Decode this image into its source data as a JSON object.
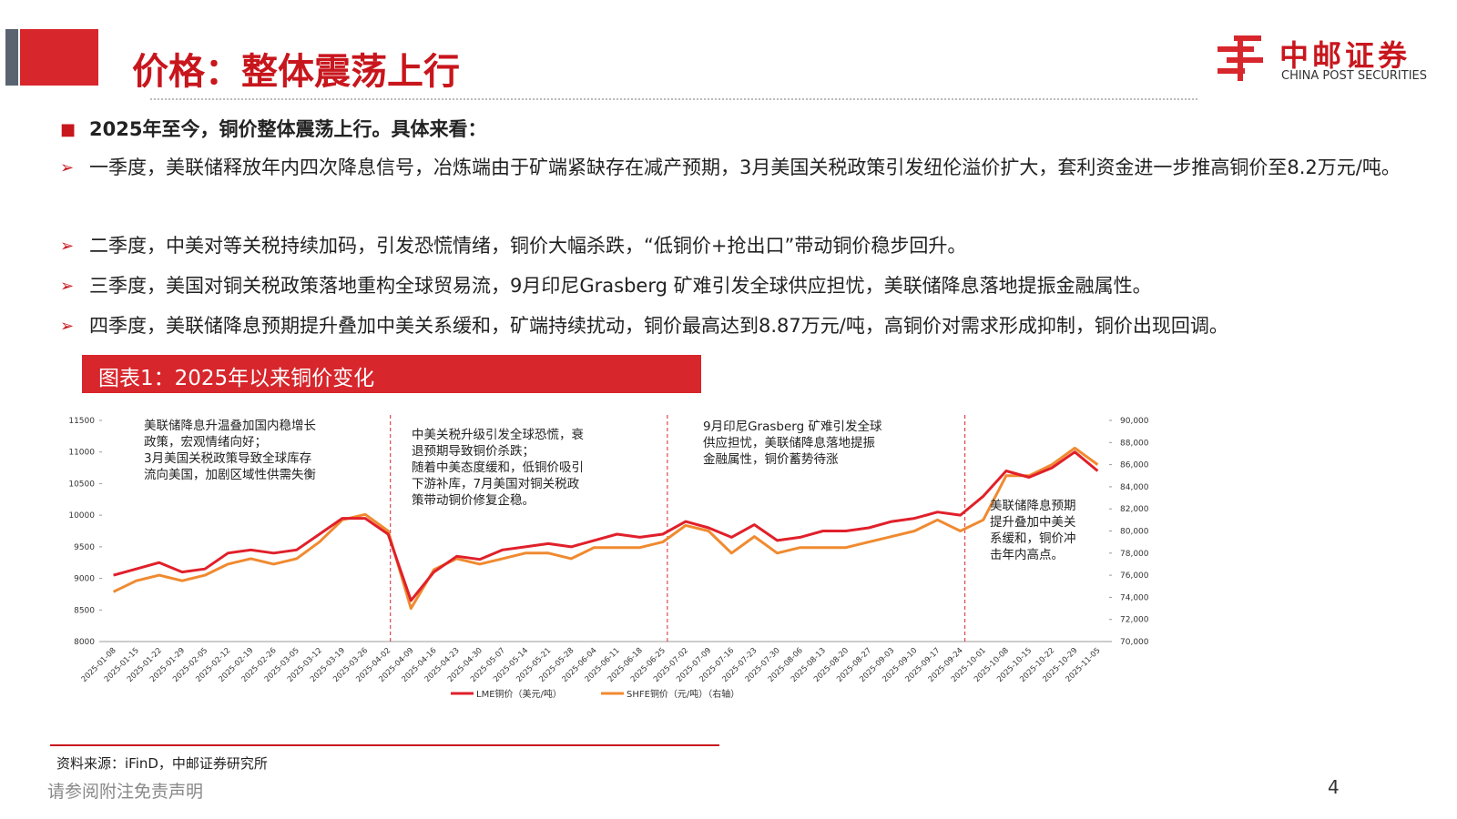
{
  "header": {
    "title": "价格：整体震荡上行",
    "logo": "中邮证券",
    "logo_sub": "CHINA POST SECURITIES"
  },
  "bullets": [
    "2025年至今，铜价整体震荡上行。具体来看：",
    "一季度，美联储释放年内四次降息信号，冶炼端由于矿端紧缺存在减产预期，3月美国关税政策引发纽伦溢价扩大，套利资金进一步推高铜价至8.2万元/吨。",
    "二季度，中美对等关税持续加码，引发恐慌情绪，铜价大幅杀跌，“低铜价+抢出口”带动铜价稳步回升。",
    "三季度，美国对铜关税政策落地重构全球贸易流，9月印尼Grasberg 矿难引发全球供应担忧，美联储降息落地提振金融属性。",
    "四季度，美联储降息预期提升叠加中美关系缓和，矿端持续扰动，铜价最高达到8.87万元/吨，高铜价对需求形成抑制，铜价出现回调。"
  ],
  "figure_title": "图表1：2025年以来铜价变化",
  "chart_data": {
    "type": "line",
    "categories": [
      "2025-01-08",
      "2025-01-15",
      "2025-01-22",
      "2025-01-29",
      "2025-02-05",
      "2025-02-12",
      "2025-02-19",
      "2025-02-26",
      "2025-03-05",
      "2025-03-12",
      "2025-03-19",
      "2025-03-26",
      "2025-04-02",
      "2025-04-09",
      "2025-04-16",
      "2025-04-23",
      "2025-04-30",
      "2025-05-07",
      "2025-05-14",
      "2025-05-21",
      "2025-05-28",
      "2025-06-04",
      "2025-06-11",
      "2025-06-18",
      "2025-06-25",
      "2025-07-02",
      "2025-07-09",
      "2025-07-16",
      "2025-07-23",
      "2025-07-30",
      "2025-08-06",
      "2025-08-13",
      "2025-08-20",
      "2025-08-27",
      "2025-09-03",
      "2025-09-10",
      "2025-09-17",
      "2025-09-24",
      "2025-10-01",
      "2025-10-08",
      "2025-10-15",
      "2025-10-22",
      "2025-10-29",
      "2025-11-05"
    ],
    "series": [
      {
        "name": "LME铜价（美元/吨）",
        "color": "#e0202a",
        "values": [
          9050,
          9150,
          9250,
          9100,
          9150,
          9400,
          9450,
          9400,
          9450,
          9700,
          9950,
          9950,
          9700,
          8650,
          9100,
          9350,
          9300,
          9450,
          9500,
          9550,
          9500,
          9600,
          9700,
          9650,
          9700,
          9900,
          9800,
          9650,
          9850,
          9600,
          9650,
          9750,
          9750,
          9800,
          9900,
          9950,
          10050,
          10000,
          10300,
          10700,
          10600,
          10750,
          11000,
          10700
        ]
      },
      {
        "name": "SHFE铜价（元/吨）（右轴）",
        "color": "#f08a30",
        "axis": "y2",
        "values": [
          74500,
          75500,
          76000,
          75500,
          76000,
          77000,
          77500,
          77000,
          77500,
          79000,
          81000,
          81500,
          80000,
          73000,
          76500,
          77500,
          77000,
          77500,
          78000,
          78000,
          77500,
          78500,
          78500,
          78500,
          79000,
          80500,
          80000,
          78000,
          79500,
          78000,
          78500,
          78500,
          78500,
          79000,
          79500,
          80000,
          81000,
          80000,
          81000,
          85000,
          85000,
          86000,
          87500,
          86000
        ]
      }
    ],
    "ylim": [
      8000,
      11500
    ],
    "yticks": [
      8000,
      8500,
      9000,
      9500,
      10000,
      10500,
      11000,
      11500
    ],
    "y2lim": [
      70000,
      90000
    ],
    "y2ticks": [
      {
        "value": 70000,
        "label": "70,000"
      },
      {
        "value": 72000,
        "label": "72,000"
      },
      {
        "value": 74000,
        "label": "74,000"
      },
      {
        "value": 76000,
        "label": "76,000"
      },
      {
        "value": 78000,
        "label": "78,000"
      },
      {
        "value": 80000,
        "label": "80,000"
      },
      {
        "value": 82000,
        "label": "82,000"
      },
      {
        "value": 84000,
        "label": "84,000"
      },
      {
        "value": 86000,
        "label": "86,000"
      },
      {
        "value": 88000,
        "label": "88,000"
      },
      {
        "value": 90000,
        "label": "90,000"
      }
    ],
    "annotations": [
      [
        "美联储降息升温叠加国内稳增长",
        "政策，宏观情绪向好；",
        "3月美国关税政策导致全球库存",
        "流向美国，加剧区域性供需失衡"
      ],
      [
        "中美关税升级引发全球恐慌，衰",
        "退预期导致铜价杀跌；",
        "随着中美态度缓和，低铜价吸引",
        "下游补库，7月美国对铜关税政",
        "策带动铜价修复企稳。"
      ],
      [
        "9月印尼Grasberg 矿难引发全球",
        "供应担忧，美联储降息落地提振",
        "金融属性，铜价蓄势待涨"
      ],
      [
        "美联储降息预期",
        "提升叠加中美关",
        "系缓和，铜价冲",
        "击年内高点。"
      ]
    ]
  },
  "source": "资料来源：iFinD，中邮证券研究所",
  "footer": {
    "disclaimer": "请参阅附注免责声明",
    "page": "4"
  }
}
